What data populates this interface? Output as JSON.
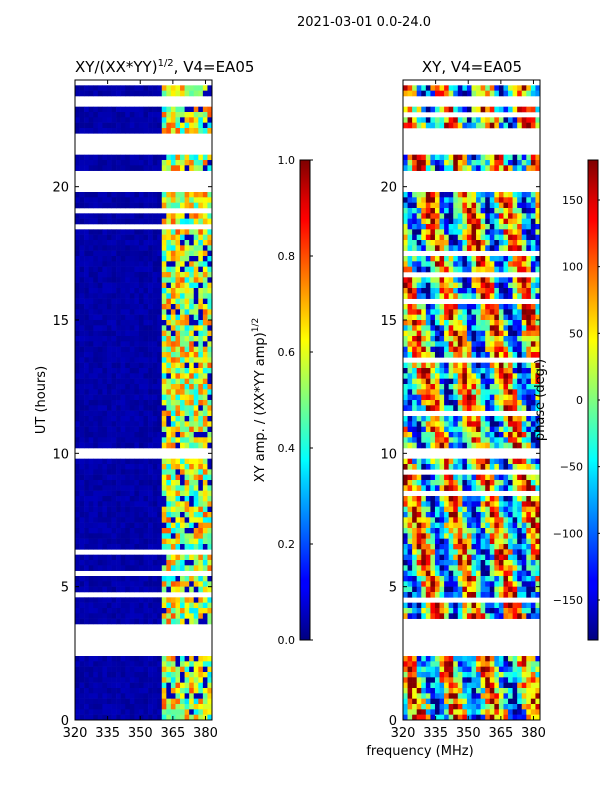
{
  "figure": {
    "suptitle": "2021-03-01 0.0-24.0"
  },
  "chart_data": [
    {
      "type": "heatmap",
      "title": "XY/(XX*YY)",
      "title_exponent": "1/2",
      "title_suffix": ", V4=EA05",
      "xlabel": "",
      "ylabel": "UT (hours)",
      "xlim": [
        320,
        383
      ],
      "ylim": [
        0,
        24
      ],
      "xticks": [
        320,
        335,
        350,
        365,
        380
      ],
      "yticks": [
        0,
        5,
        10,
        15,
        20
      ],
      "colorbar": {
        "label": "XY amp. / (XX*YY amp)",
        "label_exponent": "1/2",
        "range": [
          0.0,
          1.0
        ],
        "ticks": [
          "0.0",
          "0.2",
          "0.4",
          "0.6",
          "0.8",
          "1.0"
        ],
        "tick_values": [
          0.0,
          0.2,
          0.4,
          0.6,
          0.8,
          1.0
        ],
        "colormap": "jet"
      },
      "blank_time_ranges_hours": [
        [
          2.5,
          3.5
        ],
        [
          9.8,
          10.1
        ],
        [
          19.8,
          20.6
        ],
        [
          21.3,
          22.0
        ],
        [
          23.0,
          23.4
        ]
      ],
      "bright_freq_band_mhz": [
        360,
        383
      ]
    },
    {
      "type": "heatmap",
      "title": "XY, V4=EA05",
      "xlabel": "frequency (MHz)",
      "ylabel": "",
      "xlim": [
        320,
        383
      ],
      "ylim": [
        0,
        24
      ],
      "xticks": [
        320,
        335,
        350,
        365,
        380
      ],
      "yticks": [
        0,
        5,
        10,
        15,
        20
      ],
      "colorbar": {
        "label": "phase (deg.)",
        "range": [
          -180,
          180
        ],
        "ticks": [
          "−150",
          "−100",
          "−50",
          "0",
          "50",
          "100",
          "150"
        ],
        "tick_values": [
          -150,
          -100,
          -50,
          0,
          50,
          100,
          150
        ],
        "colormap": "jet"
      },
      "blank_time_ranges_hours": [
        [
          2.5,
          3.5
        ],
        [
          9.8,
          10.1
        ],
        [
          19.8,
          20.6
        ],
        [
          21.3,
          22.0
        ],
        [
          23.0,
          23.4
        ]
      ]
    }
  ],
  "colors": {
    "axis": "#000000",
    "background": "#ffffff"
  }
}
